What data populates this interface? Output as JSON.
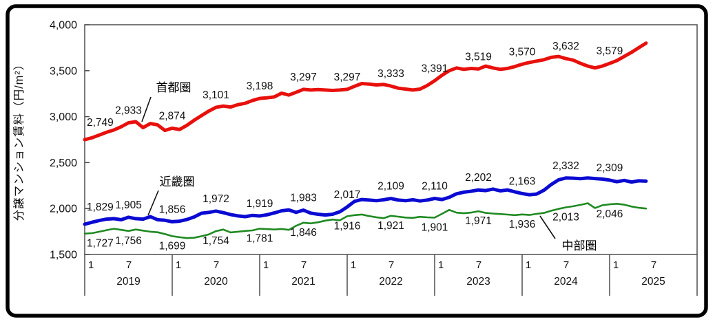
{
  "figure": {
    "background": "#ffffff",
    "frame_color": "#000000"
  },
  "chart_data": {
    "type": "line",
    "title": "",
    "ylabel": "分譲マンション賃料（円/m²）",
    "ylim": [
      1500,
      4000
    ],
    "ytick_step": 500,
    "ytick_labels": [
      "1,500",
      "2,000",
      "2,500",
      "3,000",
      "3,500",
      "4,000"
    ],
    "grid": false,
    "legend_position": "inline-callouts",
    "x_axis": {
      "years": [
        "2019",
        "2020",
        "2021",
        "2022",
        "2023",
        "2024",
        "2025"
      ],
      "month_ticks_per_year": [
        "1",
        "7"
      ],
      "months_span": 84,
      "data_start": "2019-01",
      "data_end": "2025-06"
    },
    "label_months": [
      0,
      6,
      12,
      18,
      24,
      30,
      36,
      42,
      48,
      54,
      60,
      66,
      72
    ],
    "series": [
      {
        "name": "首都圏",
        "color": "#e8100c",
        "line_width": 5,
        "label_position": "above",
        "label_values": [
          2749,
          2933,
          2874,
          3101,
          3198,
          3297,
          3297,
          3333,
          3391,
          3519,
          3570,
          3632,
          3579
        ],
        "monthly_values": [
          2749,
          2770,
          2800,
          2830,
          2855,
          2890,
          2933,
          2945,
          2880,
          2925,
          2910,
          2850,
          2874,
          2860,
          2905,
          2960,
          3010,
          3060,
          3101,
          3115,
          3105,
          3130,
          3145,
          3175,
          3198,
          3205,
          3215,
          3255,
          3235,
          3265,
          3297,
          3290,
          3295,
          3290,
          3285,
          3290,
          3297,
          3330,
          3360,
          3355,
          3345,
          3350,
          3333,
          3310,
          3300,
          3290,
          3300,
          3340,
          3391,
          3450,
          3500,
          3530,
          3515,
          3525,
          3519,
          3550,
          3530,
          3515,
          3525,
          3545,
          3570,
          3590,
          3605,
          3620,
          3645,
          3655,
          3632,
          3615,
          3580,
          3550,
          3530,
          3550,
          3579,
          3610,
          3655,
          3700,
          3750,
          3800
        ]
      },
      {
        "name": "近畿圏",
        "color": "#0a0ad2",
        "line_width": 5,
        "label_position": "above",
        "label_values": [
          1829,
          1905,
          1856,
          1972,
          1919,
          1983,
          2017,
          2109,
          2110,
          2202,
          2163,
          2332,
          2309
        ],
        "monthly_values": [
          1829,
          1850,
          1870,
          1885,
          1890,
          1878,
          1905,
          1890,
          1885,
          1912,
          1878,
          1872,
          1856,
          1862,
          1880,
          1908,
          1948,
          1958,
          1972,
          1955,
          1935,
          1920,
          1912,
          1925,
          1919,
          1932,
          1952,
          1975,
          1985,
          1958,
          1983,
          1950,
          1938,
          1930,
          1938,
          1965,
          2017,
          2078,
          2098,
          2092,
          2085,
          2095,
          2109,
          2092,
          2085,
          2095,
          2082,
          2092,
          2110,
          2098,
          2122,
          2160,
          2178,
          2188,
          2202,
          2195,
          2212,
          2192,
          2202,
          2182,
          2163,
          2150,
          2158,
          2200,
          2262,
          2312,
          2332,
          2330,
          2325,
          2332,
          2326,
          2320,
          2309,
          2292,
          2306,
          2288,
          2302,
          2298
        ]
      },
      {
        "name": "中部圏",
        "color": "#1f8a22",
        "line_width": 2.6,
        "label_position": "below",
        "label_values": [
          1727,
          1756,
          1699,
          1754,
          1781,
          1846,
          1916,
          1921,
          1901,
          1971,
          1936,
          2013,
          2046
        ],
        "monthly_values": [
          1727,
          1732,
          1748,
          1765,
          1780,
          1768,
          1756,
          1772,
          1760,
          1748,
          1742,
          1722,
          1699,
          1688,
          1678,
          1682,
          1698,
          1718,
          1754,
          1772,
          1740,
          1748,
          1756,
          1762,
          1781,
          1776,
          1772,
          1778,
          1768,
          1812,
          1846,
          1838,
          1850,
          1868,
          1880,
          1872,
          1916,
          1928,
          1935,
          1918,
          1905,
          1895,
          1921,
          1912,
          1902,
          1898,
          1910,
          1904,
          1901,
          1942,
          1985,
          1955,
          1948,
          1956,
          1971,
          1952,
          1945,
          1940,
          1934,
          1928,
          1936,
          1930,
          1942,
          1952,
          1976,
          1996,
          2013,
          2025,
          2040,
          2058,
          2005,
          2036,
          2046,
          2052,
          2042,
          2022,
          2008,
          2000
        ]
      }
    ]
  }
}
